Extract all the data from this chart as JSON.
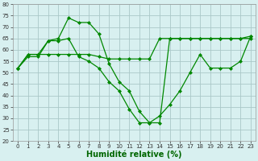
{
  "x": [
    0,
    1,
    2,
    3,
    4,
    5,
    6,
    7,
    8,
    9,
    10,
    11,
    12,
    13,
    14,
    15,
    16,
    17,
    18,
    19,
    20,
    21,
    22,
    23
  ],
  "line1": [
    52,
    58,
    58,
    64,
    65,
    74,
    72,
    72,
    67,
    54,
    46,
    42,
    33,
    28,
    28,
    65,
    65,
    65,
    65,
    65,
    65,
    65,
    65,
    66
  ],
  "line2": [
    52,
    58,
    58,
    58,
    58,
    58,
    58,
    58,
    57,
    56,
    56,
    56,
    56,
    56,
    65,
    65,
    65,
    65,
    65,
    65,
    65,
    65,
    65,
    65
  ],
  "line3": [
    52,
    57,
    57,
    64,
    64,
    65,
    57,
    55,
    52,
    46,
    42,
    34,
    28,
    28,
    31,
    36,
    42,
    50,
    58,
    52,
    52,
    52,
    55,
    66
  ],
  "bg_color": "#d8f0f0",
  "grid_color": "#aac8c8",
  "line_color": "#008800",
  "marker": "D",
  "markersize": 2,
  "linewidth": 0.9,
  "xlabel": "Humidité relative (%)",
  "xlabel_color": "#006600",
  "ylim": [
    20,
    80
  ],
  "xlim_min": -0.5,
  "xlim_max": 23.5,
  "yticks": [
    20,
    25,
    30,
    35,
    40,
    45,
    50,
    55,
    60,
    65,
    70,
    75,
    80
  ],
  "xticks": [
    0,
    1,
    2,
    3,
    4,
    5,
    6,
    7,
    8,
    9,
    10,
    11,
    12,
    13,
    14,
    15,
    16,
    17,
    18,
    19,
    20,
    21,
    22,
    23
  ],
  "tick_fontsize": 5,
  "xlabel_fontsize": 7
}
